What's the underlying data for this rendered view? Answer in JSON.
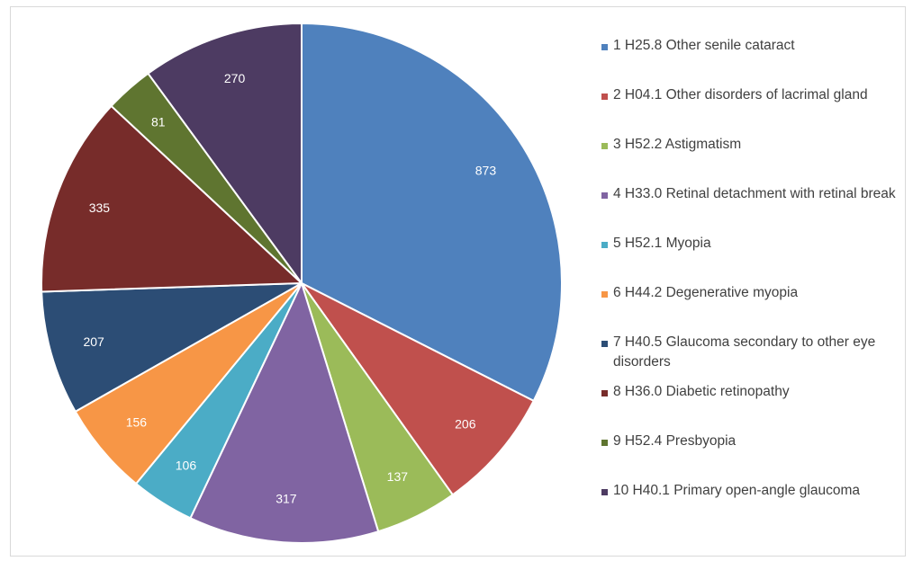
{
  "chart_data": {
    "type": "pie",
    "title": "",
    "legend_position": "right",
    "slices": [
      {
        "label": "1 H25.8 Other senile cataract",
        "value": 873,
        "color": "#4f81bd"
      },
      {
        "label": "2 H04.1 Other disorders of lacrimal gland",
        "value": 206,
        "color": "#c0504d"
      },
      {
        "label": "3 H52.2 Astigmatism",
        "value": 137,
        "color": "#9bbb59"
      },
      {
        "label": "4 H33.0 Retinal detachment with retinal break",
        "value": 317,
        "color": "#8064a2"
      },
      {
        "label": "5 H52.1 Myopia",
        "value": 106,
        "color": "#4bacc6"
      },
      {
        "label": "6 H44.2 Degenerative myopia",
        "value": 156,
        "color": "#f79646"
      },
      {
        "label": "7 H40.5 Glaucoma secondary to other eye disorders",
        "value": 207,
        "color": "#2c4d75"
      },
      {
        "label": "8 H36.0 Diabetic retinopathy",
        "value": 335,
        "color": "#772c2a"
      },
      {
        "label": "9 H52.4 Presbyopia",
        "value": 81,
        "color": "#5f7530"
      },
      {
        "label": "10 H40.1 Primary open-angle glaucoma",
        "value": 270,
        "color": "#4d3b62"
      }
    ]
  }
}
